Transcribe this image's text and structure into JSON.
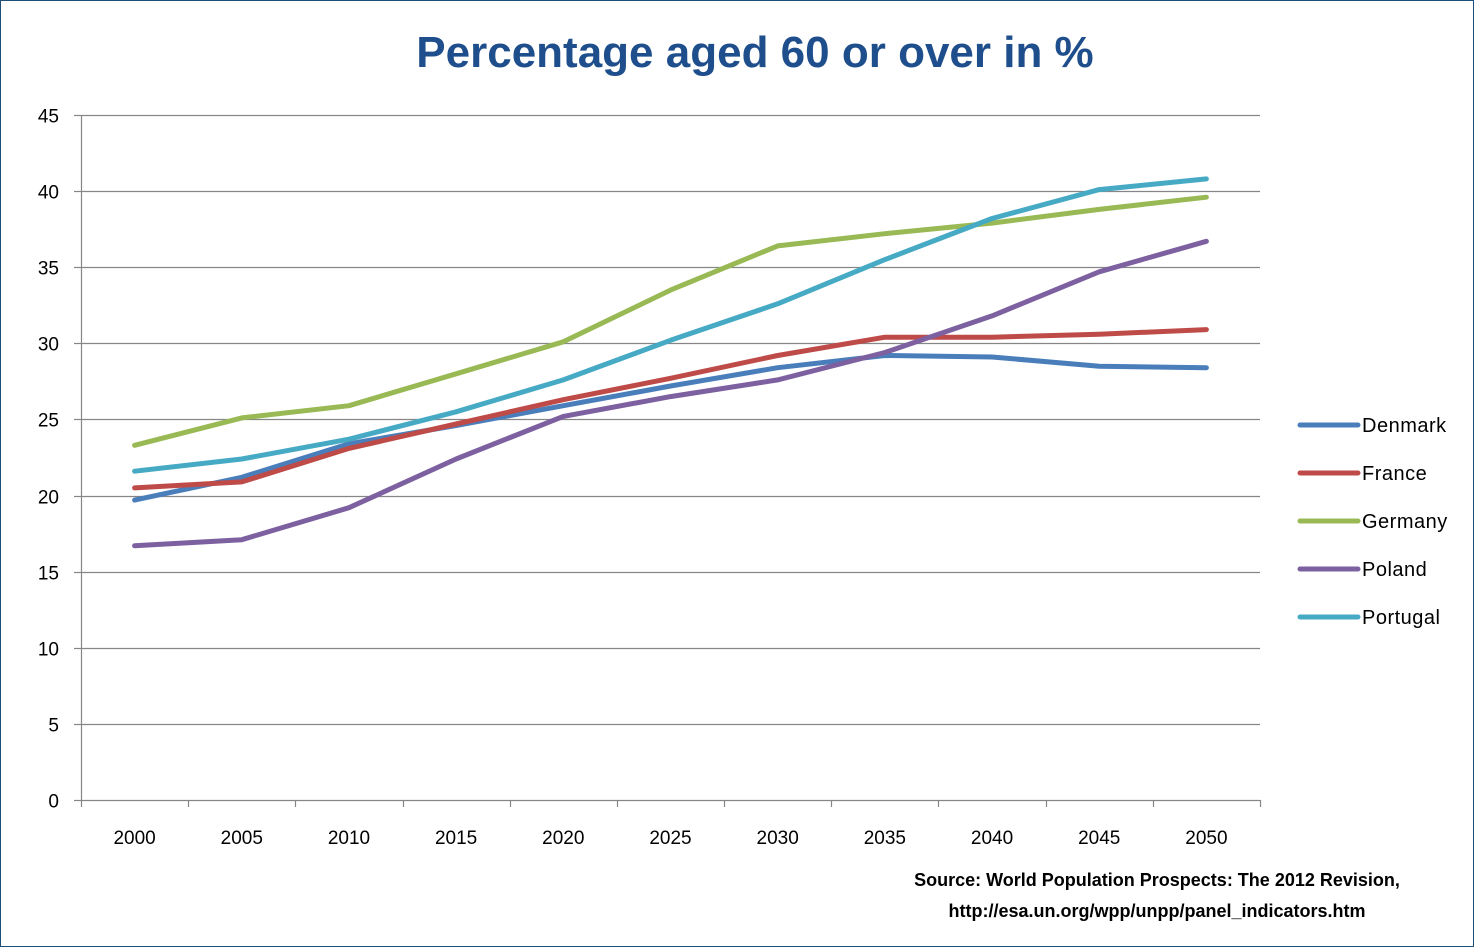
{
  "chart_data": {
    "type": "line",
    "title": "Percentage aged 60 or over in %",
    "xlabel": "",
    "ylabel": "",
    "x": [
      "2000",
      "2005",
      "2010",
      "2015",
      "2020",
      "2025",
      "2030",
      "2035",
      "2040",
      "2045",
      "2050"
    ],
    "ylim": [
      0,
      45
    ],
    "yticks": [
      "0",
      "5",
      "10",
      "15",
      "20",
      "25",
      "30",
      "35",
      "40",
      "45"
    ],
    "grid": true,
    "legend_position": "right",
    "series": [
      {
        "name": "Denmark",
        "color": "#4A7EBB",
        "values": [
          19.7,
          21.2,
          23.4,
          24.6,
          25.9,
          27.2,
          28.4,
          29.2,
          29.1,
          28.5,
          28.4
        ]
      },
      {
        "name": "France",
        "color": "#BE4B48",
        "values": [
          20.5,
          20.9,
          23.1,
          24.7,
          26.3,
          27.7,
          29.2,
          30.4,
          30.4,
          30.6,
          30.9
        ]
      },
      {
        "name": "Germany",
        "color": "#98B954",
        "values": [
          23.3,
          25.1,
          25.9,
          28.0,
          30.1,
          33.5,
          36.4,
          37.2,
          37.9,
          38.8,
          39.6
        ]
      },
      {
        "name": "Poland",
        "color": "#7D60A0",
        "values": [
          16.7,
          17.1,
          19.2,
          22.4,
          25.2,
          26.5,
          27.6,
          29.4,
          31.8,
          34.7,
          36.7
        ]
      },
      {
        "name": "Portugal",
        "color": "#46AAC5",
        "values": [
          21.6,
          22.4,
          23.7,
          25.5,
          27.6,
          30.2,
          32.6,
          35.5,
          38.2,
          40.1,
          40.8
        ]
      }
    ]
  },
  "source": {
    "line1": "Source: World Population Prospects: The 2012 Revision,",
    "line2": "http://esa.un.org/wpp/unpp/panel_indicators.htm"
  }
}
